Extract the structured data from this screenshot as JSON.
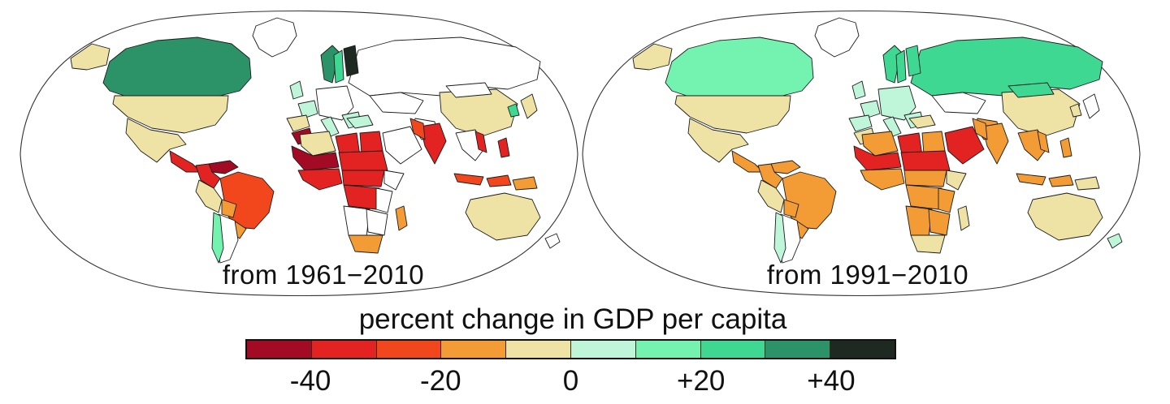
{
  "maps": {
    "left": {
      "label": "from 1961−2010",
      "colors": {
        "greenland": "#ffffff",
        "alaska": "#eee3a4",
        "canada": "#2b9367",
        "usa": "#eee3a4",
        "mexico": "#eee3a4",
        "central_america": "#e32322",
        "venezuela": "#a30b25",
        "colombia": "#e32322",
        "brazil": "#f2461c",
        "peru": "#eee3a4",
        "bolivia": "#f39c35",
        "paraguay_uruguay": "#f39c35",
        "argentina": "#ffffff",
        "chile": "#74f2b0",
        "uk": "#bff6da",
        "france": "#bff6da",
        "iberia": "#eee3a4",
        "central_europe": "#ffffff",
        "italy_balkans": "#bff6da",
        "norway": "#2b9367",
        "sweden": "#3fd893",
        "finland": "#1d2921",
        "russia": "#ffffff",
        "kazakhstan": "#ffffff",
        "turkey": "#bff6da",
        "iran": "#ffffff",
        "arabia": "#ffffff",
        "morocco": "#a30b25",
        "algeria": "#eee3a4",
        "libya": "#e32322",
        "egypt": "#e32322",
        "mauritania_mali": "#a30b25",
        "sahel": "#e32322",
        "west_africa": "#e32322",
        "central_africa": "#e32322",
        "horn": "#ffffff",
        "drc": "#e32322",
        "east_africa": "#ffffff",
        "angola_namibia": "#ffffff",
        "zambia_mozambique": "#ffffff",
        "south_africa": "#f39c35",
        "madagascar": "#f39c35",
        "india": "#e32322",
        "pakistan": "#f2461c",
        "china": "#eee3a4",
        "mongolia": "#ffffff",
        "se_asia": "#ffffff",
        "vietnam": "#e32322",
        "indonesia": "#f2461c",
        "philippines": "#e32322",
        "png": "#f39c35",
        "japan": "#eee3a4",
        "korea": "#3fd893",
        "australia": "#eee3a4",
        "new_zealand": "#ffffff"
      }
    },
    "right": {
      "label": "from 1991−2010",
      "colors": {
        "greenland": "#ffffff",
        "alaska": "#eee3a4",
        "canada": "#74f2b0",
        "usa": "#eee3a4",
        "mexico": "#eee3a4",
        "central_america": "#f39c35",
        "venezuela": "#f39c35",
        "colombia": "#f39c35",
        "brazil": "#f39c35",
        "peru": "#eee3a4",
        "bolivia": "#f39c35",
        "paraguay_uruguay": "#f39c35",
        "argentina": "#ffffff",
        "chile": "#bff6da",
        "uk": "#bff6da",
        "france": "#bff6da",
        "iberia": "#bff6da",
        "central_europe": "#bff6da",
        "italy_balkans": "#bff6da",
        "norway": "#3fd893",
        "sweden": "#3fd893",
        "finland": "#3fd893",
        "russia": "#3fd893",
        "kazakhstan": "#ffffff",
        "turkey": "#eee3a4",
        "iran": "#f39c35",
        "arabia": "#e32322",
        "morocco": "#eee3a4",
        "algeria": "#f39c35",
        "libya": "#e32322",
        "egypt": "#f39c35",
        "mauritania_mali": "#e32322",
        "sahel": "#e32322",
        "west_africa": "#f39c35",
        "central_africa": "#f39c35",
        "horn": "#eee3a4",
        "drc": "#f39c35",
        "east_africa": "#f39c35",
        "angola_namibia": "#f39c35",
        "zambia_mozambique": "#f39c35",
        "south_africa": "#eee3a4",
        "madagascar": "#eee3a4",
        "india": "#f39c35",
        "pakistan": "#f39c35",
        "china": "#eee3a4",
        "mongolia": "#3fd893",
        "se_asia": "#f39c35",
        "vietnam": "#f39c35",
        "indonesia": "#f39c35",
        "philippines": "#f39c35",
        "png": "#eee3a4",
        "japan": "#ffffff",
        "korea": "#eee3a4",
        "australia": "#eee3a4",
        "new_zealand": "#bff6da"
      }
    }
  },
  "legend": {
    "title": "percent change in GDP per capita",
    "tick_labels": [
      "-40",
      "-20",
      "0",
      "+20",
      "+40"
    ],
    "colors": [
      "#a30b25",
      "#e32322",
      "#f2461c",
      "#f39c35",
      "#eee3a4",
      "#bff6da",
      "#74f2b0",
      "#3fd893",
      "#2b9367",
      "#1d2921"
    ],
    "bin_edges": [
      -50,
      -40,
      -30,
      -20,
      -10,
      0,
      10,
      20,
      30,
      40,
      50
    ],
    "no_data_color": "#ffffff"
  },
  "chart_data": {
    "type": "heatmap",
    "subtype": "world_choropleth",
    "projection": "robinson",
    "title": "percent change in GDP per capita",
    "colorbar": {
      "range": [
        -50,
        50
      ],
      "ticks": [
        -40,
        -20,
        0,
        20,
        40
      ],
      "tick_labels": [
        "-40",
        "-20",
        "0",
        "+20",
        "+40"
      ],
      "segment_colors": [
        "#a30b25",
        "#e32322",
        "#f2461c",
        "#f39c35",
        "#eee3a4",
        "#bff6da",
        "#74f2b0",
        "#3fd893",
        "#2b9367",
        "#1d2921"
      ]
    },
    "panels": [
      {
        "label": "from 1961−2010",
        "regions": {
          "canada": 35,
          "alaska": -5,
          "usa": -5,
          "mexico": -5,
          "central_america": -35,
          "venezuela": -45,
          "colombia": -35,
          "brazil": -25,
          "peru": -5,
          "bolivia": -15,
          "paraguay_uruguay": -15,
          "argentina": null,
          "chile": 15,
          "greenland": null,
          "uk": 5,
          "france": 5,
          "iberia": -5,
          "central_europe": null,
          "italy_balkans": 5,
          "norway": 35,
          "sweden": 25,
          "finland": 45,
          "russia": null,
          "kazakhstan": null,
          "turkey": 5,
          "iran": null,
          "arabia": null,
          "morocco": -45,
          "algeria": -5,
          "libya": -35,
          "egypt": -35,
          "mauritania_mali": -45,
          "sahel": -35,
          "west_africa": -35,
          "central_africa": -35,
          "horn": null,
          "drc": -35,
          "east_africa": null,
          "angola_namibia": null,
          "zambia_mozambique": null,
          "south_africa": -15,
          "madagascar": -15,
          "india": -35,
          "pakistan": -25,
          "china": -5,
          "mongolia": null,
          "se_asia": null,
          "vietnam": -35,
          "indonesia": -25,
          "philippines": -35,
          "png": -15,
          "japan": -5,
          "korea": 25,
          "australia": -5,
          "new_zealand": null
        }
      },
      {
        "label": "from 1991−2010",
        "regions": {
          "canada": 15,
          "alaska": -5,
          "usa": -5,
          "mexico": -5,
          "central_america": -15,
          "venezuela": -15,
          "colombia": -15,
          "brazil": -15,
          "peru": -5,
          "bolivia": -15,
          "paraguay_uruguay": -15,
          "argentina": null,
          "chile": 5,
          "greenland": null,
          "uk": 5,
          "france": 5,
          "iberia": 5,
          "central_europe": 5,
          "italy_balkans": 5,
          "norway": 25,
          "sweden": 25,
          "finland": 25,
          "russia": 25,
          "kazakhstan": null,
          "turkey": -5,
          "iran": -15,
          "arabia": -35,
          "morocco": -5,
          "algeria": -15,
          "libya": -35,
          "egypt": -15,
          "mauritania_mali": -35,
          "sahel": -35,
          "west_africa": -15,
          "central_africa": -15,
          "horn": -5,
          "drc": -15,
          "east_africa": -15,
          "angola_namibia": -15,
          "zambia_mozambique": -15,
          "south_africa": -5,
          "madagascar": -5,
          "india": -15,
          "pakistan": -15,
          "china": -5,
          "mongolia": 25,
          "se_asia": -15,
          "vietnam": -15,
          "indonesia": -15,
          "philippines": -15,
          "png": -5,
          "japan": null,
          "korea": -5,
          "australia": -5,
          "new_zealand": 5
        }
      }
    ]
  }
}
